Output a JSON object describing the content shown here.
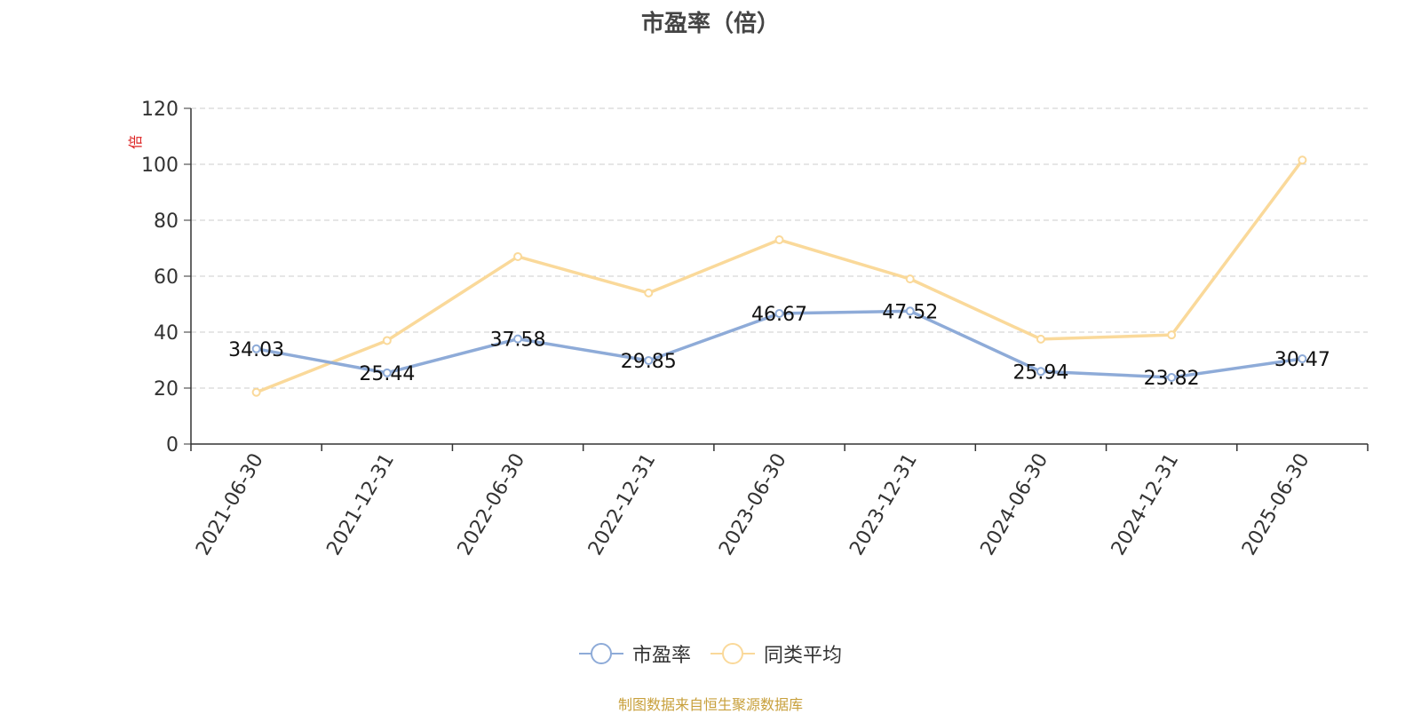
{
  "chart_data": {
    "type": "line",
    "title": "市盈率（倍）",
    "ylabel": "倍",
    "xlabel": "",
    "ylim": [
      0,
      120
    ],
    "yticks": [
      0,
      20,
      40,
      60,
      80,
      100,
      120
    ],
    "categories": [
      "2021-06-30",
      "2021-12-31",
      "2022-06-30",
      "2022-12-31",
      "2023-06-30",
      "2023-12-31",
      "2024-06-30",
      "2024-12-31",
      "2025-06-30"
    ],
    "series": [
      {
        "name": "市盈率",
        "color": "#8eabd8",
        "values": [
          34.03,
          25.44,
          37.58,
          29.85,
          46.67,
          47.52,
          25.94,
          23.82,
          30.47
        ],
        "data_labels": [
          "34.03",
          "25.44",
          "37.58",
          "29.85",
          "46.67",
          "47.52",
          "25.94",
          "23.82",
          "30.47"
        ]
      },
      {
        "name": "同类平均",
        "color": "#fad99a",
        "values": [
          18.5,
          37.0,
          67.0,
          54.0,
          73.0,
          59.0,
          37.5,
          39.0,
          101.5
        ]
      }
    ],
    "grid": true,
    "legend_position": "bottom"
  },
  "source_note": "制图数据来自恒生聚源数据库"
}
